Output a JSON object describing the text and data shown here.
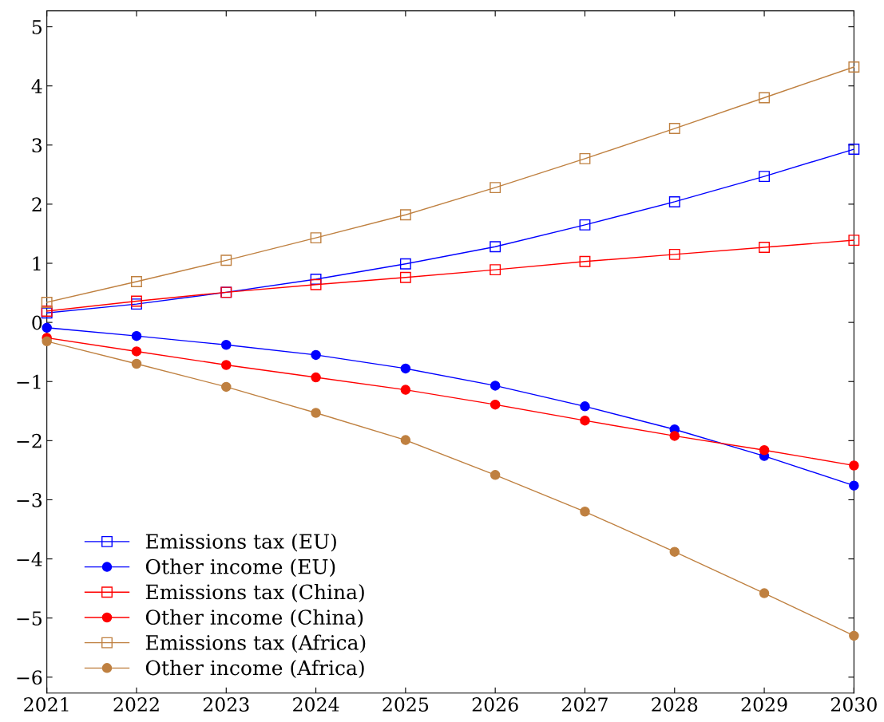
{
  "chart_data": {
    "type": "line",
    "x": [
      2021,
      2022,
      2023,
      2024,
      2025,
      2026,
      2027,
      2028,
      2029,
      2030
    ],
    "xlim": [
      2021,
      2030
    ],
    "xticks": [
      2021,
      2022,
      2023,
      2024,
      2025,
      2026,
      2027,
      2028,
      2029,
      2030
    ],
    "ylim": [
      -6.27,
      5.27
    ],
    "yticks": [
      {
        "value": -6,
        "label": "−6"
      },
      {
        "value": -5,
        "label": "−5"
      },
      {
        "value": -4,
        "label": "−4"
      },
      {
        "value": -3,
        "label": "−3"
      },
      {
        "value": -2,
        "label": "−2"
      },
      {
        "value": -1,
        "label": "−1"
      },
      0,
      1,
      2,
      3,
      4,
      5
    ],
    "grid": false,
    "legend": "bottom left",
    "line_style": "solid",
    "series": [
      {
        "name": "Emissions tax (EU)",
        "color": "#0000ff",
        "marker": "square",
        "values": [
          0.16,
          0.31,
          0.51,
          0.73,
          0.99,
          1.28,
          1.65,
          2.04,
          2.47,
          2.93
        ]
      },
      {
        "name": "Other income (EU)",
        "color": "#0000ff",
        "marker": "circle",
        "values": [
          -0.09,
          -0.23,
          -0.38,
          -0.55,
          -0.78,
          -1.07,
          -1.42,
          -1.81,
          -2.26,
          -2.76
        ]
      },
      {
        "name": "Emissions tax (China)",
        "color": "#ff0000",
        "marker": "square",
        "values": [
          0.19,
          0.36,
          0.51,
          0.64,
          0.76,
          0.89,
          1.03,
          1.15,
          1.27,
          1.39
        ]
      },
      {
        "name": "Other income (China)",
        "color": "#ff0000",
        "marker": "circle",
        "values": [
          -0.26,
          -0.49,
          -0.72,
          -0.93,
          -1.14,
          -1.39,
          -1.66,
          -1.92,
          -2.16,
          -2.42
        ]
      },
      {
        "name": "Emissions tax (Africa)",
        "color": "#bf8040",
        "marker": "square",
        "values": [
          0.34,
          0.69,
          1.05,
          1.43,
          1.82,
          2.28,
          2.77,
          3.28,
          3.8,
          4.32
        ]
      },
      {
        "name": "Other income (Africa)",
        "color": "#bf8040",
        "marker": "circle",
        "values": [
          -0.32,
          -0.7,
          -1.09,
          -1.53,
          -1.99,
          -2.58,
          -3.2,
          -3.88,
          -4.58,
          -5.3
        ]
      }
    ]
  }
}
